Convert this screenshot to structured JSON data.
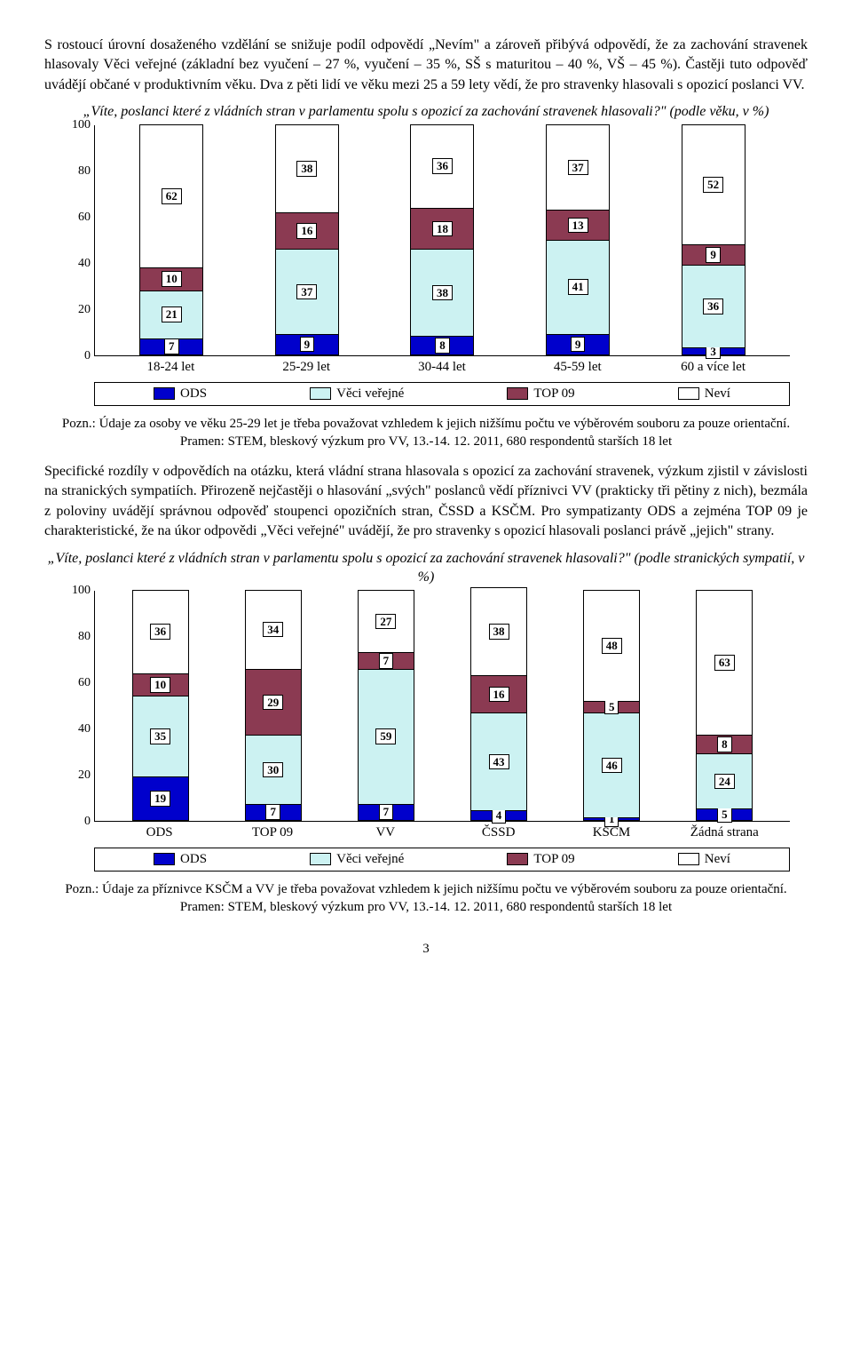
{
  "intro_para": "S rostoucí úrovní dosaženého vzdělání se snižuje podíl odpovědí „Nevím\" a zároveň přibývá odpovědí, že za zachování stravenek hlasovaly Věci veřejné (základní bez vyučení – 27 %, vyučení – 35 %, SŠ s maturitou – 40 %, VŠ – 45 %). Častěji tuto odpověď uvádějí občané v produktivním věku. Dva z pěti lidí ve věku mezi 25 a 59 lety vědí, že pro stravenky hlasovali s opozicí poslanci VV.",
  "chart1": {
    "title": "„Víte, poslanci které z vládních stran v parlamentu spolu s opozicí za zachování stravenek hlasovali?\"    (podle věku, v %)",
    "type": "stacked-bar",
    "ylim": [
      0,
      100
    ],
    "ytick_step": 20,
    "yticks": [
      "0",
      "20",
      "40",
      "60",
      "80",
      "100"
    ],
    "categories": [
      "18-24 let",
      "25-29 let",
      "30-44 let",
      "45-59 let",
      "60 a více let"
    ],
    "series": [
      {
        "name": "ODS",
        "color": "#0000cc"
      },
      {
        "name": "Věci veřejné",
        "color": "#ccf2f2"
      },
      {
        "name": "TOP 09",
        "color": "#8b3a52"
      },
      {
        "name": "Neví",
        "color": "#ffffff"
      }
    ],
    "data": [
      [
        7,
        21,
        10,
        62
      ],
      [
        9,
        37,
        16,
        38
      ],
      [
        8,
        38,
        18,
        36
      ],
      [
        9,
        41,
        13,
        37
      ],
      [
        3,
        36,
        9,
        52
      ]
    ],
    "note": "Pozn.: Údaje za osoby ve věku 25-29 let je třeba považovat vzhledem k jejich nižšímu počtu ve výběrovém souboru za pouze orientační.",
    "source": "Pramen: STEM, bleskový výzkum pro VV,  13.-14. 12. 2011, 680 respondentů starších 18 let"
  },
  "mid_para": "Specifické rozdíly v odpovědích na otázku, která vládní strana hlasovala s opozicí za zachování stravenek, výzkum zjistil v závislosti na stranických sympatiích. Přirozeně nejčastěji o hlasování „svých\" poslanců vědí příznivci VV (prakticky tři pětiny z nich), bezmála z poloviny uvádějí správnou odpověď stoupenci opozičních stran, ČSSD a KSČM. Pro sympatizanty ODS a zejména TOP 09 je charakteristické, že na úkor odpovědi „Věci veřejné\" uvádějí, že pro stravenky s opozicí hlasovali poslanci právě „jejich\" strany.",
  "chart2": {
    "title": "„Víte, poslanci které z vládních stran v parlamentu spolu s opozicí za zachování stravenek hlasovali?\"    (podle stranických sympatií, v %)",
    "type": "stacked-bar",
    "ylim": [
      0,
      100
    ],
    "ytick_step": 20,
    "yticks": [
      "0",
      "20",
      "40",
      "60",
      "80",
      "100"
    ],
    "categories": [
      "ODS",
      "TOP 09",
      "VV",
      "ČSSD",
      "KSČM",
      "Žádná strana"
    ],
    "series": [
      {
        "name": "ODS",
        "color": "#0000cc"
      },
      {
        "name": "Věci veřejné",
        "color": "#ccf2f2"
      },
      {
        "name": "TOP 09",
        "color": "#8b3a52"
      },
      {
        "name": "Neví",
        "color": "#ffffff"
      }
    ],
    "data": [
      [
        19,
        35,
        10,
        36
      ],
      [
        7,
        30,
        29,
        34
      ],
      [
        7,
        59,
        7,
        27
      ],
      [
        4,
        43,
        16,
        38
      ],
      [
        1,
        46,
        5,
        48
      ],
      [
        5,
        24,
        8,
        63
      ]
    ],
    "note": "Pozn.: Údaje za příznivce KSČM a VV je třeba považovat vzhledem k jejich nižšímu počtu ve výběrovém souboru za pouze orientační.",
    "source": "Pramen: STEM, bleskový výzkum pro VV,  13.-14. 12. 2011, 680 respondentů starších 18 let"
  },
  "legend_labels": [
    "ODS",
    "Věci veřejné",
    "TOP 09",
    "Neví"
  ],
  "page_number": "3"
}
